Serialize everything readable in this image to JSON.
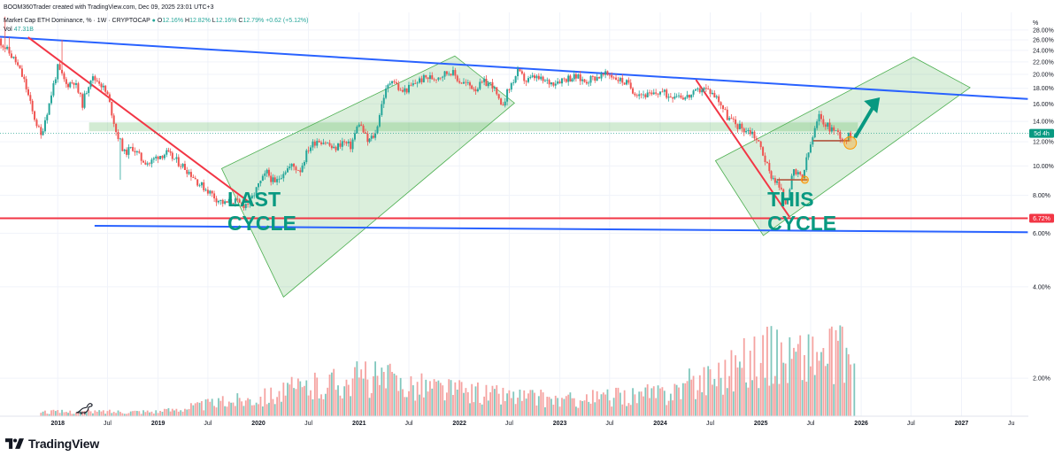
{
  "header": {
    "credit": "BOOM360Trader created with TradingView.com, Dec 09, 2025 23:01 UTC+3",
    "symbol": "Market Cap ETH Dominance, % · 1W · CRYPTOCAP",
    "open_key": "O",
    "open": "12.16%",
    "high_key": "H",
    "high": "12.82%",
    "low_key": "L",
    "low": "12.16%",
    "close_key": "C",
    "close": "12.79%",
    "change": "+0.62 (+5.12%)",
    "vol_label": "Vol",
    "vol_value": "47.31B"
  },
  "brand": {
    "name": "TradingView",
    "logo_icon": "tradingview-logo-icon"
  },
  "colors": {
    "up": "#26a69a",
    "down": "#ef5350",
    "trend_blue": "#2962ff",
    "trend_red": "#f23645",
    "channel_fill": "#4caf50",
    "arrow": "#089981",
    "label_text": "#089981"
  },
  "annotations": {
    "last_cycle": [
      "LAST",
      "CYCLE"
    ],
    "this_cycle": [
      "THIS",
      "CYCLE"
    ]
  },
  "chart_data": {
    "type": "candlestick",
    "title": "Market Cap ETH Dominance, %",
    "interval": "1W",
    "ylabel": "%",
    "y_scale": "log",
    "ylim": [
      1.5,
      32
    ],
    "y_ticks": [
      "28.00%",
      "26.00%",
      "24.00%",
      "22.00%",
      "20.00%",
      "18.00%",
      "16.00%",
      "14.00%",
      "12.00%",
      "10.00%",
      "8.00%",
      "6.00%",
      "4.00%",
      "2.00%"
    ],
    "x_ticks": [
      "2018",
      "Jul",
      "2019",
      "Jul",
      "2020",
      "Jul",
      "2021",
      "Jul",
      "2022",
      "Jul",
      "2023",
      "Jul",
      "2024",
      "Jul",
      "2025",
      "Jul",
      "2026",
      "Jul",
      "2027",
      "Ju"
    ],
    "xlim": [
      "2017-06-05",
      "2027-09-01"
    ],
    "last_price_label": "12.79%",
    "countdown_label": "5d 4h",
    "support_label": "6.72%",
    "trend_lines": [
      {
        "name": "upper resistance",
        "color": "blue",
        "from": [
          "2017-06-05",
          26.6
        ],
        "to": [
          "2027-08-30",
          16.6
        ]
      },
      {
        "name": "lower support",
        "color": "blue",
        "from": [
          "2018-05-15",
          6.35
        ],
        "to": [
          "2027-08-30",
          6.05
        ]
      },
      {
        "name": "horizontal support",
        "color": "red",
        "from": [
          "2017-06-05",
          6.72
        ],
        "to": [
          "2027-08-30",
          6.72
        ]
      },
      {
        "name": "2018 downtrend",
        "color": "red",
        "from": [
          "2017-09-15",
          26.5
        ],
        "to": [
          "2019-12-15",
          7.4
        ]
      },
      {
        "name": "2024 downtrend",
        "color": "red",
        "from": [
          "2024-05-10",
          19.2
        ],
        "to": [
          "2025-04-15",
          6.8
        ]
      }
    ],
    "zones": [
      {
        "name": "resistance band",
        "from": [
          "2018-04-25",
          13.9
        ],
        "to": [
          "2025-12-20",
          13.0
        ]
      }
    ],
    "series": [
      {
        "name": "weekly closes",
        "x": [
          "2017-06-01",
          "2017-07-01",
          "2017-08-01",
          "2017-09-01",
          "2017-10-01",
          "2017-11-01",
          "2017-12-01",
          "2018-01-01",
          "2018-02-01",
          "2018-03-01",
          "2018-04-01",
          "2018-05-01",
          "2018-06-01",
          "2018-07-01",
          "2018-08-01",
          "2018-09-01",
          "2018-10-01",
          "2018-11-01",
          "2018-12-01",
          "2019-01-01",
          "2019-02-01",
          "2019-03-01",
          "2019-04-01",
          "2019-05-01",
          "2019-06-01",
          "2019-07-01",
          "2019-08-01",
          "2019-09-01",
          "2019-10-01",
          "2019-11-01",
          "2019-12-01",
          "2020-01-01",
          "2020-02-01",
          "2020-03-01",
          "2020-04-01",
          "2020-05-01",
          "2020-06-01",
          "2020-07-01",
          "2020-08-01",
          "2020-09-01",
          "2020-10-01",
          "2020-11-01",
          "2020-12-01",
          "2021-01-01",
          "2021-02-01",
          "2021-03-01",
          "2021-04-01",
          "2021-05-01",
          "2021-06-01",
          "2021-07-01",
          "2021-08-01",
          "2021-09-01",
          "2021-10-01",
          "2021-11-01",
          "2021-12-01",
          "2022-01-01",
          "2022-02-01",
          "2022-03-01",
          "2022-04-01",
          "2022-05-01",
          "2022-06-01",
          "2022-07-01",
          "2022-08-01",
          "2022-09-01",
          "2022-10-01",
          "2022-11-01",
          "2022-12-01",
          "2023-01-01",
          "2023-02-01",
          "2023-03-01",
          "2023-04-01",
          "2023-05-01",
          "2023-06-01",
          "2023-07-01",
          "2023-08-01",
          "2023-09-01",
          "2023-10-01",
          "2023-11-01",
          "2023-12-01",
          "2024-01-01",
          "2024-02-01",
          "2024-03-01",
          "2024-04-01",
          "2024-05-01",
          "2024-06-01",
          "2024-07-01",
          "2024-08-01",
          "2024-09-01",
          "2024-10-01",
          "2024-11-01",
          "2024-12-01",
          "2025-01-01",
          "2025-02-01",
          "2025-03-01",
          "2025-04-01",
          "2025-05-01",
          "2025-06-01",
          "2025-07-01",
          "2025-08-01",
          "2025-09-01",
          "2025-10-01",
          "2025-11-01",
          "2025-12-01"
        ],
        "close": [
          26.0,
          24.0,
          22.0,
          19.0,
          15.0,
          12.5,
          16.0,
          21.0,
          18.5,
          19.0,
          16.0,
          19.5,
          19.0,
          17.0,
          13.0,
          11.0,
          11.5,
          10.5,
          10.2,
          10.8,
          11.0,
          10.5,
          10.0,
          9.4,
          8.7,
          8.3,
          7.8,
          7.5,
          7.7,
          7.4,
          7.6,
          8.6,
          9.5,
          8.7,
          9.6,
          10.0,
          9.7,
          11.4,
          12.2,
          12.0,
          11.3,
          12.0,
          11.6,
          13.9,
          12.0,
          12.7,
          17.0,
          19.5,
          17.5,
          18.0,
          19.0,
          19.5,
          19.5,
          20.0,
          20.5,
          19.0,
          18.5,
          18.0,
          18.8,
          18.5,
          15.5,
          18.0,
          20.3,
          19.0,
          19.6,
          19.0,
          18.8,
          19.2,
          19.5,
          19.6,
          19.0,
          19.5,
          19.8,
          20.0,
          19.3,
          18.7,
          17.5,
          17.2,
          17.0,
          17.6,
          17.0,
          17.3,
          16.8,
          17.2,
          18.0,
          17.6,
          16.5,
          14.5,
          13.7,
          13.2,
          12.9,
          11.5,
          9.5,
          8.8,
          7.6,
          9.5,
          9.1,
          11.7,
          14.5,
          13.5,
          13.0,
          12.2,
          12.79
        ]
      },
      {
        "name": "Vol",
        "x": [
          "2017",
          "2018",
          "2019",
          "2020",
          "2021",
          "2022",
          "2023",
          "2024",
          "2025"
        ],
        "relative": [
          0.08,
          0.06,
          0.07,
          0.28,
          0.55,
          0.35,
          0.22,
          0.32,
          0.85
        ]
      }
    ]
  }
}
